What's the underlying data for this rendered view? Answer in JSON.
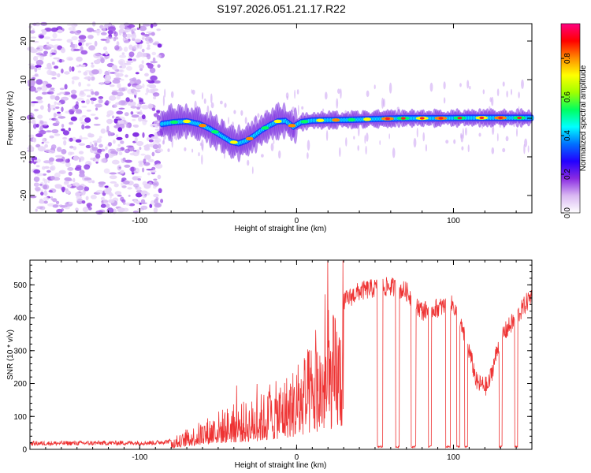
{
  "figure_title": "S197.2026.051.21.17.R22",
  "chart_data": [
    {
      "type": "heatmap",
      "title": "S197.2026.051.21.17.R22",
      "xlabel": "Height of straight line (km)",
      "ylabel": "Frequency (Hz)",
      "xlim": [
        -170,
        150
      ],
      "ylim": [
        -24.5,
        24.5
      ],
      "xticks": [
        -100,
        0,
        100
      ],
      "xtick_labels": [
        "-100",
        "0",
        "100"
      ],
      "yticks": [
        -20,
        -10,
        0,
        10,
        20
      ],
      "ytick_labels": [
        "-20",
        "-10",
        "0",
        "10",
        "20"
      ],
      "noise_region_x": [
        -170,
        -86
      ],
      "signal_start_x": -86,
      "trace": [
        {
          "x": -86,
          "f": -1.5
        },
        {
          "x": -78,
          "f": -1.0
        },
        {
          "x": -70,
          "f": -0.8
        },
        {
          "x": -62,
          "f": -1.5
        },
        {
          "x": -55,
          "f": -2.8
        },
        {
          "x": -48,
          "f": -4.5
        },
        {
          "x": -42,
          "f": -6.0
        },
        {
          "x": -37,
          "f": -6.5
        },
        {
          "x": -32,
          "f": -5.8
        },
        {
          "x": -27,
          "f": -4.5
        },
        {
          "x": -22,
          "f": -3.0
        },
        {
          "x": -17,
          "f": -1.8
        },
        {
          "x": -12,
          "f": -0.8
        },
        {
          "x": -7,
          "f": -0.7
        },
        {
          "x": -2,
          "f": -2.2
        },
        {
          "x": 3,
          "f": -1.0
        },
        {
          "x": 10,
          "f": -0.6
        },
        {
          "x": 20,
          "f": -0.5
        },
        {
          "x": 35,
          "f": -0.4
        },
        {
          "x": 50,
          "f": -0.2
        },
        {
          "x": 70,
          "f": 0.0
        },
        {
          "x": 90,
          "f": 0.0
        },
        {
          "x": 110,
          "f": 0.1
        },
        {
          "x": 130,
          "f": 0.1
        },
        {
          "x": 149,
          "f": 0.1
        }
      ],
      "colorbar": {
        "label": "Normalized spectral amplitude",
        "range": [
          0,
          0.98
        ],
        "ticks": [
          0.0,
          0.2,
          0.4,
          0.6,
          0.8
        ],
        "tick_labels": [
          "0.0",
          "0.2",
          "0.4",
          "0.6",
          "0.8"
        ],
        "colors": [
          "#ffffff",
          "#d9b8f2",
          "#8a2be2",
          "#2200ff",
          "#0070ff",
          "#00ffff",
          "#00ff60",
          "#a0ff00",
          "#ffff00",
          "#ff8c00",
          "#ff0000",
          "#ff0080"
        ]
      }
    },
    {
      "type": "line",
      "xlabel": "Height of straight line (km)",
      "ylabel": "SNR (10 * v/v)",
      "xlim": [
        -170,
        150
      ],
      "ylim": [
        0,
        575
      ],
      "xticks": [
        -100,
        0,
        100
      ],
      "xtick_labels": [
        "-100",
        "0",
        "100"
      ],
      "yticks": [
        0,
        100,
        200,
        300,
        400,
        500
      ],
      "ytick_labels": [
        "0",
        "100",
        "200",
        "300",
        "400",
        "500"
      ],
      "color": "#ee3333",
      "envelope": [
        {
          "x": -170,
          "y": 18
        },
        {
          "x": -90,
          "y": 20
        },
        {
          "x": -80,
          "y": 25
        },
        {
          "x": -70,
          "y": 60
        },
        {
          "x": -60,
          "y": 90
        },
        {
          "x": -50,
          "y": 120
        },
        {
          "x": -40,
          "y": 140
        },
        {
          "x": -30,
          "y": 150
        },
        {
          "x": -20,
          "y": 180
        },
        {
          "x": -10,
          "y": 220
        },
        {
          "x": 0,
          "y": 260
        },
        {
          "x": 10,
          "y": 330
        },
        {
          "x": 20,
          "y": 400
        },
        {
          "x": 30,
          "y": 450
        },
        {
          "x": 40,
          "y": 480
        },
        {
          "x": 50,
          "y": 490
        },
        {
          "x": 60,
          "y": 495
        },
        {
          "x": 70,
          "y": 480
        },
        {
          "x": 80,
          "y": 420
        },
        {
          "x": 90,
          "y": 430
        },
        {
          "x": 100,
          "y": 440
        },
        {
          "x": 110,
          "y": 300
        },
        {
          "x": 115,
          "y": 200
        },
        {
          "x": 122,
          "y": 190
        },
        {
          "x": 130,
          "y": 340
        },
        {
          "x": 140,
          "y": 400
        },
        {
          "x": 150,
          "y": 470
        }
      ],
      "dropouts": [
        [
          51.5,
          55
        ],
        [
          63,
          65.5
        ],
        [
          73,
          76
        ],
        [
          84,
          86
        ],
        [
          95,
          98
        ],
        [
          102,
          104
        ],
        [
          107,
          109
        ],
        [
          129,
          131
        ],
        [
          139,
          141
        ]
      ]
    }
  ]
}
